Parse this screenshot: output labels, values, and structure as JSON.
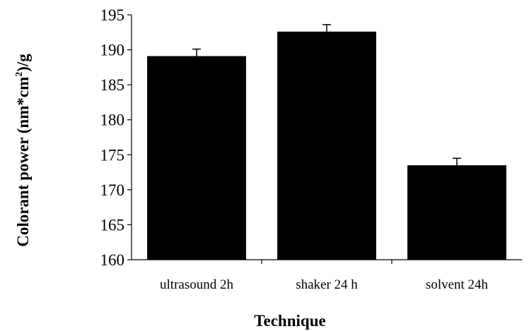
{
  "chart_data": {
    "type": "bar",
    "categories": [
      "ultrasound 2h",
      "shaker 24 h",
      "solvent 24h"
    ],
    "values": [
      189.1,
      192.6,
      173.5
    ],
    "errors": [
      1.0,
      1.0,
      1.0
    ],
    "xlabel": "Technique",
    "ylabel": {
      "part1": "Colorant power (nm*cm",
      "sup": "2",
      "part2": ")/g"
    },
    "ylim": [
      160,
      195
    ],
    "yticks": [
      160,
      165,
      170,
      175,
      180,
      185,
      190,
      195
    ],
    "bar_color": "#000000",
    "grid": false,
    "legend": "none"
  }
}
